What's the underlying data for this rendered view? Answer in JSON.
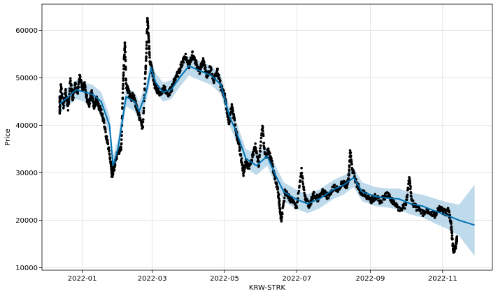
{
  "chart_data": {
    "type": "line",
    "title": "",
    "xlabel": "KRW-STRK",
    "ylabel": "Price",
    "x_ticks": [
      "2022-01",
      "2022-03",
      "2022-05",
      "2022-07",
      "2022-09",
      "2022-11"
    ],
    "y_ticks": [
      10000,
      20000,
      30000,
      40000,
      50000,
      60000
    ],
    "y_tick_labels": [
      "10000",
      "20000",
      "30000",
      "40000",
      "50000",
      "60000"
    ],
    "xlim": [
      "2021-11-28",
      "2022-12-13"
    ],
    "ylim": [
      9500,
      65500
    ],
    "grid": true,
    "colors": {
      "forecast": "#0072B2",
      "interval": "#A8CDE4",
      "observed": "#000000"
    },
    "series": [
      {
        "role": "forecast",
        "points": [
          [
            "2021-12-13",
            44500
          ],
          [
            "2021-12-20",
            46000
          ],
          [
            "2021-12-27",
            47500
          ],
          [
            "2022-01-03",
            47000
          ],
          [
            "2022-01-10",
            46500
          ],
          [
            "2022-01-17",
            45000
          ],
          [
            "2022-01-24",
            40000
          ],
          [
            "2022-01-27",
            31500
          ],
          [
            "2022-01-31",
            35000
          ],
          [
            "2022-02-07",
            46000
          ],
          [
            "2022-02-14",
            45000
          ],
          [
            "2022-02-18",
            43000
          ],
          [
            "2022-02-24",
            47000
          ],
          [
            "2022-02-28",
            52000
          ],
          [
            "2022-03-04",
            49000
          ],
          [
            "2022-03-10",
            47000
          ],
          [
            "2022-03-17",
            47500
          ],
          [
            "2022-03-24",
            50000
          ],
          [
            "2022-04-01",
            52500
          ],
          [
            "2022-04-10",
            51500
          ],
          [
            "2022-04-20",
            50500
          ],
          [
            "2022-04-28",
            48500
          ],
          [
            "2022-05-05",
            42000
          ],
          [
            "2022-05-12",
            38000
          ],
          [
            "2022-05-19",
            33000
          ],
          [
            "2022-05-28",
            31500
          ],
          [
            "2022-06-06",
            33500
          ],
          [
            "2022-06-13",
            29500
          ],
          [
            "2022-06-20",
            26000
          ],
          [
            "2022-06-30",
            24500
          ],
          [
            "2022-07-10",
            23500
          ],
          [
            "2022-07-20",
            24500
          ],
          [
            "2022-08-01",
            26500
          ],
          [
            "2022-08-10",
            27500
          ],
          [
            "2022-08-18",
            29000
          ],
          [
            "2022-08-25",
            26000
          ],
          [
            "2022-09-05",
            25000
          ],
          [
            "2022-09-15",
            24700
          ],
          [
            "2022-09-25",
            24500
          ],
          [
            "2022-10-05",
            23500
          ],
          [
            "2022-10-15",
            23000
          ],
          [
            "2022-10-25",
            22000
          ],
          [
            "2022-11-05",
            21000
          ],
          [
            "2022-11-15",
            20000
          ],
          [
            "2022-11-28",
            19000
          ]
        ]
      },
      {
        "role": "interval-upper",
        "points": [
          [
            "2021-12-13",
            46500
          ],
          [
            "2021-12-20",
            48000
          ],
          [
            "2021-12-27",
            49500
          ],
          [
            "2022-01-03",
            49000
          ],
          [
            "2022-01-10",
            48500
          ],
          [
            "2022-01-17",
            47000
          ],
          [
            "2022-01-24",
            42000
          ],
          [
            "2022-01-27",
            33500
          ],
          [
            "2022-01-31",
            37000
          ],
          [
            "2022-02-07",
            48000
          ],
          [
            "2022-02-14",
            47000
          ],
          [
            "2022-02-18",
            45000
          ],
          [
            "2022-02-24",
            49000
          ],
          [
            "2022-02-28",
            54000
          ],
          [
            "2022-03-04",
            51000
          ],
          [
            "2022-03-10",
            49000
          ],
          [
            "2022-03-17",
            49500
          ],
          [
            "2022-03-24",
            52000
          ],
          [
            "2022-04-01",
            54500
          ],
          [
            "2022-04-10",
            53500
          ],
          [
            "2022-04-20",
            52500
          ],
          [
            "2022-04-28",
            50500
          ],
          [
            "2022-05-05",
            44000
          ],
          [
            "2022-05-12",
            40000
          ],
          [
            "2022-05-19",
            35000
          ],
          [
            "2022-05-28",
            34000
          ],
          [
            "2022-06-06",
            35500
          ],
          [
            "2022-06-13",
            31500
          ],
          [
            "2022-06-20",
            28000
          ],
          [
            "2022-06-30",
            26500
          ],
          [
            "2022-07-10",
            25500
          ],
          [
            "2022-07-20",
            26500
          ],
          [
            "2022-08-01",
            28500
          ],
          [
            "2022-08-10",
            29500
          ],
          [
            "2022-08-18",
            31000
          ],
          [
            "2022-08-25",
            28000
          ],
          [
            "2022-09-05",
            27000
          ],
          [
            "2022-09-15",
            26700
          ],
          [
            "2022-09-25",
            26700
          ],
          [
            "2022-10-05",
            25800
          ],
          [
            "2022-10-15",
            25400
          ],
          [
            "2022-10-25",
            24600
          ],
          [
            "2022-11-05",
            23800
          ],
          [
            "2022-11-15",
            23300
          ],
          [
            "2022-11-28",
            27500
          ]
        ]
      },
      {
        "role": "interval-lower",
        "points": [
          [
            "2021-12-13",
            42500
          ],
          [
            "2021-12-20",
            44000
          ],
          [
            "2021-12-27",
            45500
          ],
          [
            "2022-01-03",
            45000
          ],
          [
            "2022-01-10",
            44500
          ],
          [
            "2022-01-17",
            43000
          ],
          [
            "2022-01-24",
            38000
          ],
          [
            "2022-01-27",
            29000
          ],
          [
            "2022-01-31",
            33000
          ],
          [
            "2022-02-07",
            44000
          ],
          [
            "2022-02-14",
            43000
          ],
          [
            "2022-02-18",
            41000
          ],
          [
            "2022-02-24",
            45000
          ],
          [
            "2022-02-28",
            50000
          ],
          [
            "2022-03-04",
            47000
          ],
          [
            "2022-03-10",
            45000
          ],
          [
            "2022-03-17",
            45500
          ],
          [
            "2022-03-24",
            48000
          ],
          [
            "2022-04-01",
            50500
          ],
          [
            "2022-04-10",
            49500
          ],
          [
            "2022-04-20",
            48500
          ],
          [
            "2022-04-28",
            46500
          ],
          [
            "2022-05-05",
            40000
          ],
          [
            "2022-05-12",
            36000
          ],
          [
            "2022-05-19",
            31000
          ],
          [
            "2022-05-28",
            29500
          ],
          [
            "2022-06-06",
            31500
          ],
          [
            "2022-06-13",
            27500
          ],
          [
            "2022-06-20",
            24000
          ],
          [
            "2022-06-30",
            22500
          ],
          [
            "2022-07-10",
            21500
          ],
          [
            "2022-07-20",
            22500
          ],
          [
            "2022-08-01",
            24500
          ],
          [
            "2022-08-10",
            25500
          ],
          [
            "2022-08-18",
            27000
          ],
          [
            "2022-08-25",
            24000
          ],
          [
            "2022-09-05",
            23000
          ],
          [
            "2022-09-15",
            22700
          ],
          [
            "2022-09-25",
            22300
          ],
          [
            "2022-10-05",
            21200
          ],
          [
            "2022-10-15",
            20600
          ],
          [
            "2022-10-25",
            19400
          ],
          [
            "2022-11-05",
            18200
          ],
          [
            "2022-11-15",
            16700
          ],
          [
            "2022-11-28",
            12500
          ]
        ]
      },
      {
        "role": "observed",
        "points": [
          [
            "2021-12-13",
            46000
          ],
          [
            "2021-12-13",
            42500
          ],
          [
            "2021-12-14",
            48500
          ],
          [
            "2021-12-16",
            44000
          ],
          [
            "2021-12-18",
            47000
          ],
          [
            "2021-12-20",
            43500
          ],
          [
            "2021-12-22",
            49500
          ],
          [
            "2021-12-24",
            45500
          ],
          [
            "2021-12-26",
            48500
          ],
          [
            "2021-12-28",
            46500
          ],
          [
            "2021-12-30",
            50500
          ],
          [
            "2022-01-01",
            47500
          ],
          [
            "2022-01-03",
            49000
          ],
          [
            "2022-01-05",
            45500
          ],
          [
            "2022-01-07",
            44500
          ],
          [
            "2022-01-09",
            47000
          ],
          [
            "2022-01-11",
            43500
          ],
          [
            "2022-01-13",
            45500
          ],
          [
            "2022-01-15",
            44000
          ],
          [
            "2022-01-17",
            43000
          ],
          [
            "2022-01-19",
            41000
          ],
          [
            "2022-01-21",
            38000
          ],
          [
            "2022-01-23",
            35500
          ],
          [
            "2022-01-25",
            32000
          ],
          [
            "2022-01-26",
            29500
          ],
          [
            "2022-01-28",
            31000
          ],
          [
            "2022-01-30",
            33500
          ],
          [
            "2022-02-01",
            34500
          ],
          [
            "2022-02-03",
            35500
          ],
          [
            "2022-02-04",
            45000
          ],
          [
            "2022-02-05",
            52500
          ],
          [
            "2022-02-06",
            57500
          ],
          [
            "2022-02-07",
            48500
          ],
          [
            "2022-02-09",
            47000
          ],
          [
            "2022-02-11",
            45500
          ],
          [
            "2022-02-13",
            46500
          ],
          [
            "2022-02-15",
            44500
          ],
          [
            "2022-02-17",
            43000
          ],
          [
            "2022-02-19",
            41000
          ],
          [
            "2022-02-21",
            39000
          ],
          [
            "2022-02-23",
            49500
          ],
          [
            "2022-02-24",
            55000
          ],
          [
            "2022-02-25",
            62500
          ],
          [
            "2022-02-26",
            58500
          ],
          [
            "2022-02-27",
            53500
          ],
          [
            "2022-03-01",
            51500
          ],
          [
            "2022-03-03",
            48500
          ],
          [
            "2022-03-05",
            47500
          ],
          [
            "2022-03-08",
            46500
          ],
          [
            "2022-03-11",
            48000
          ],
          [
            "2022-03-14",
            46500
          ],
          [
            "2022-03-17",
            47500
          ],
          [
            "2022-03-20",
            49500
          ],
          [
            "2022-03-23",
            51000
          ],
          [
            "2022-03-26",
            53000
          ],
          [
            "2022-03-29",
            54500
          ],
          [
            "2022-04-01",
            52500
          ],
          [
            "2022-04-04",
            55000
          ],
          [
            "2022-04-07",
            53000
          ],
          [
            "2022-04-10",
            51500
          ],
          [
            "2022-04-13",
            53500
          ],
          [
            "2022-04-16",
            50500
          ],
          [
            "2022-04-19",
            52000
          ],
          [
            "2022-04-22",
            49500
          ],
          [
            "2022-04-25",
            51500
          ],
          [
            "2022-04-28",
            48000
          ],
          [
            "2022-05-01",
            46500
          ],
          [
            "2022-05-03",
            43000
          ],
          [
            "2022-05-05",
            40500
          ],
          [
            "2022-05-07",
            44000
          ],
          [
            "2022-05-09",
            41500
          ],
          [
            "2022-05-11",
            38500
          ],
          [
            "2022-05-13",
            36000
          ],
          [
            "2022-05-15",
            33000
          ],
          [
            "2022-05-17",
            30000
          ],
          [
            "2022-05-19",
            32500
          ],
          [
            "2022-05-21",
            31000
          ],
          [
            "2022-05-24",
            33000
          ],
          [
            "2022-05-27",
            35500
          ],
          [
            "2022-05-30",
            31500
          ],
          [
            "2022-06-02",
            40000
          ],
          [
            "2022-06-04",
            33500
          ],
          [
            "2022-06-07",
            34500
          ],
          [
            "2022-06-10",
            32000
          ],
          [
            "2022-06-12",
            29500
          ],
          [
            "2022-06-14",
            27500
          ],
          [
            "2022-06-16",
            24500
          ],
          [
            "2022-06-17",
            21500
          ],
          [
            "2022-06-18",
            20000
          ],
          [
            "2022-06-21",
            26000
          ],
          [
            "2022-06-24",
            25000
          ],
          [
            "2022-06-27",
            24000
          ],
          [
            "2022-07-01",
            23000
          ],
          [
            "2022-07-05",
            30500
          ],
          [
            "2022-07-08",
            24500
          ],
          [
            "2022-07-12",
            23000
          ],
          [
            "2022-07-15",
            25500
          ],
          [
            "2022-07-19",
            24500
          ],
          [
            "2022-07-23",
            26000
          ],
          [
            "2022-07-27",
            25000
          ],
          [
            "2022-08-01",
            27000
          ],
          [
            "2022-08-05",
            26500
          ],
          [
            "2022-08-09",
            28000
          ],
          [
            "2022-08-12",
            27000
          ],
          [
            "2022-08-14",
            29500
          ],
          [
            "2022-08-15",
            34500
          ],
          [
            "2022-08-17",
            30500
          ],
          [
            "2022-08-20",
            28000
          ],
          [
            "2022-08-24",
            26000
          ],
          [
            "2022-08-28",
            25500
          ],
          [
            "2022-09-01",
            24000
          ],
          [
            "2022-09-05",
            25000
          ],
          [
            "2022-09-10",
            24000
          ],
          [
            "2022-09-15",
            25500
          ],
          [
            "2022-09-20",
            24000
          ],
          [
            "2022-09-25",
            22500
          ],
          [
            "2022-10-01",
            23000
          ],
          [
            "2022-10-04",
            29000
          ],
          [
            "2022-10-06",
            24000
          ],
          [
            "2022-10-10",
            22500
          ],
          [
            "2022-10-15",
            21500
          ],
          [
            "2022-10-20",
            22000
          ],
          [
            "2022-10-25",
            21000
          ],
          [
            "2022-10-30",
            22500
          ],
          [
            "2022-11-03",
            21500
          ],
          [
            "2022-11-06",
            22000
          ],
          [
            "2022-11-08",
            19500
          ],
          [
            "2022-11-09",
            16500
          ],
          [
            "2022-11-10",
            13500
          ],
          [
            "2022-11-12",
            14500
          ],
          [
            "2022-11-13",
            16000
          ]
        ]
      }
    ]
  }
}
